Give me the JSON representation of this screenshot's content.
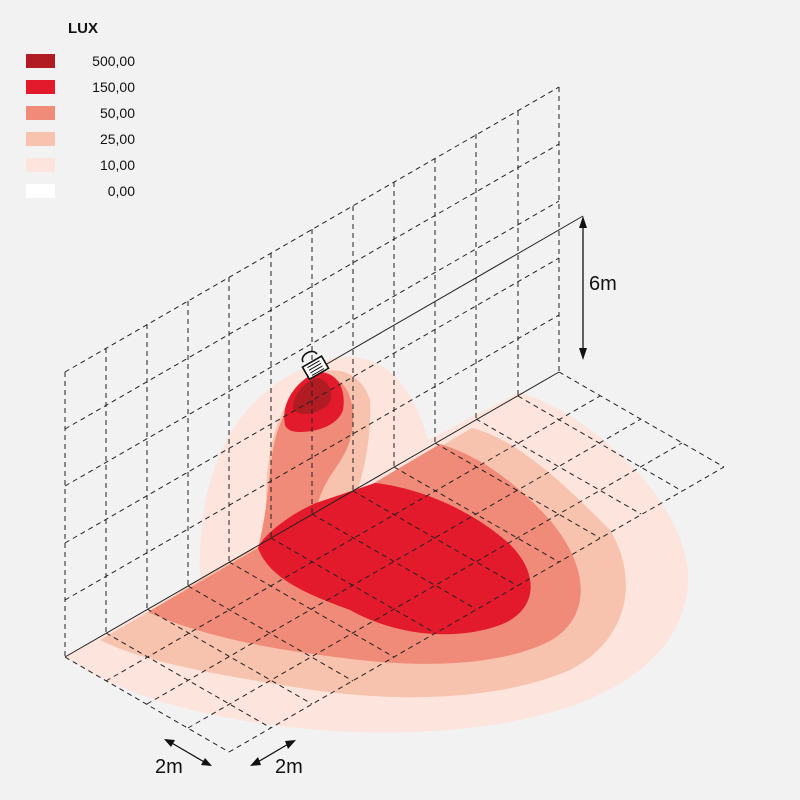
{
  "legend": {
    "title": "LUX",
    "items": [
      {
        "label": "500,00",
        "color": "#b01c22"
      },
      {
        "label": "150,00",
        "color": "#e31a2c"
      },
      {
        "label": "50,00",
        "color": "#ef8b78"
      },
      {
        "label": "25,00",
        "color": "#f7c2ae"
      },
      {
        "label": "10,00",
        "color": "#fde4dc"
      },
      {
        "label": "0,00",
        "color": "#ffffff"
      }
    ]
  },
  "dimensions": {
    "height": "6m",
    "grid_x": "2m",
    "grid_y": "2m"
  }
}
